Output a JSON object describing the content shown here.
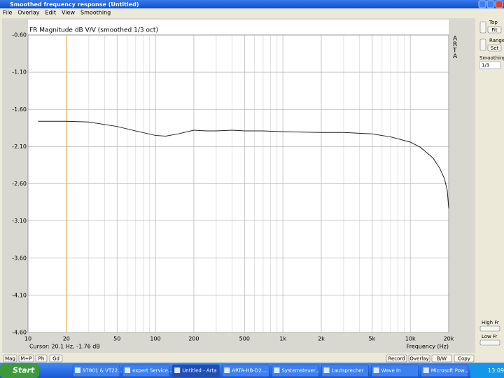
{
  "window": {
    "title": "Smoothed frequency response (Untitled)",
    "menu": [
      "File",
      "Overlay",
      "Edit",
      "View",
      "Smoothing"
    ]
  },
  "chart_data": {
    "type": "line",
    "title": "FR Magnitude dB V/V (smoothed 1/3 oct)",
    "xlabel": "Frequency (Hz)",
    "watermark": "ARTA",
    "cursor_x": 20.1,
    "cursor_label": "Cursor: 20.1 Hz, -1.76 dB",
    "cursor_color": "#e8b030",
    "x": [
      12,
      20,
      30,
      50,
      70,
      100,
      120,
      150,
      200,
      250,
      300,
      400,
      500,
      700,
      1000,
      2000,
      3000,
      5000,
      7000,
      10000,
      12000,
      15000,
      17000,
      18500,
      19500,
      20000
    ],
    "values": [
      -1.76,
      -1.76,
      -1.77,
      -1.83,
      -1.89,
      -1.95,
      -1.96,
      -1.93,
      -1.88,
      -1.89,
      -1.89,
      -1.88,
      -1.89,
      -1.89,
      -1.9,
      -1.91,
      -1.91,
      -1.93,
      -1.97,
      -2.04,
      -2.11,
      -2.25,
      -2.39,
      -2.53,
      -2.69,
      -2.93
    ],
    "color": "#202020",
    "log_x": true,
    "grid": true,
    "xlim": [
      10,
      20000
    ],
    "xticks": [
      10,
      20,
      50,
      100,
      200,
      500,
      {
        "value": 1000,
        "label": "1k"
      },
      {
        "value": 2000,
        "label": "2k"
      },
      {
        "value": 5000,
        "label": "5k"
      },
      {
        "value": 10000,
        "label": "10k"
      },
      {
        "value": 20000,
        "label": "20k"
      }
    ],
    "ylim": [
      -4.6,
      -0.6
    ],
    "yticks": [
      {
        "value": -4.6,
        "label": "-4.60"
      },
      {
        "value": -4.1,
        "label": "-4.10"
      },
      {
        "value": -3.6,
        "label": "-3.60"
      },
      {
        "value": -3.1,
        "label": "-3.10"
      },
      {
        "value": -2.6,
        "label": "-2.60"
      },
      {
        "value": -2.1,
        "label": "-2.10"
      },
      {
        "value": -1.6,
        "label": "-1.60"
      },
      {
        "value": -1.1,
        "label": "-1.10"
      },
      {
        "value": -0.6,
        "label": "-0.60"
      }
    ]
  },
  "side_panel": {
    "top": "Top",
    "fit": "Fit",
    "range": "Range",
    "set": "Set",
    "smoothing": "Smoothing",
    "smoothing_value": "1/3",
    "high_fr": "High Fr",
    "low_fr": "Low Fr"
  },
  "buttons_left": [
    "Mag",
    "M+P",
    "Ph",
    "Gd"
  ],
  "buttons_right": [
    "Record",
    "Overlay",
    "B/W",
    "Copy"
  ],
  "taskbar": {
    "start": "Start",
    "tasks": [
      "97801 & VT22...",
      "expert Service...",
      "Untitled - Arta",
      "ARTA-HB-D2....",
      "Systemsteuer...",
      "Lautsprecher",
      "Wave In",
      "Microsoft Pow..."
    ],
    "clock": "13:09"
  }
}
